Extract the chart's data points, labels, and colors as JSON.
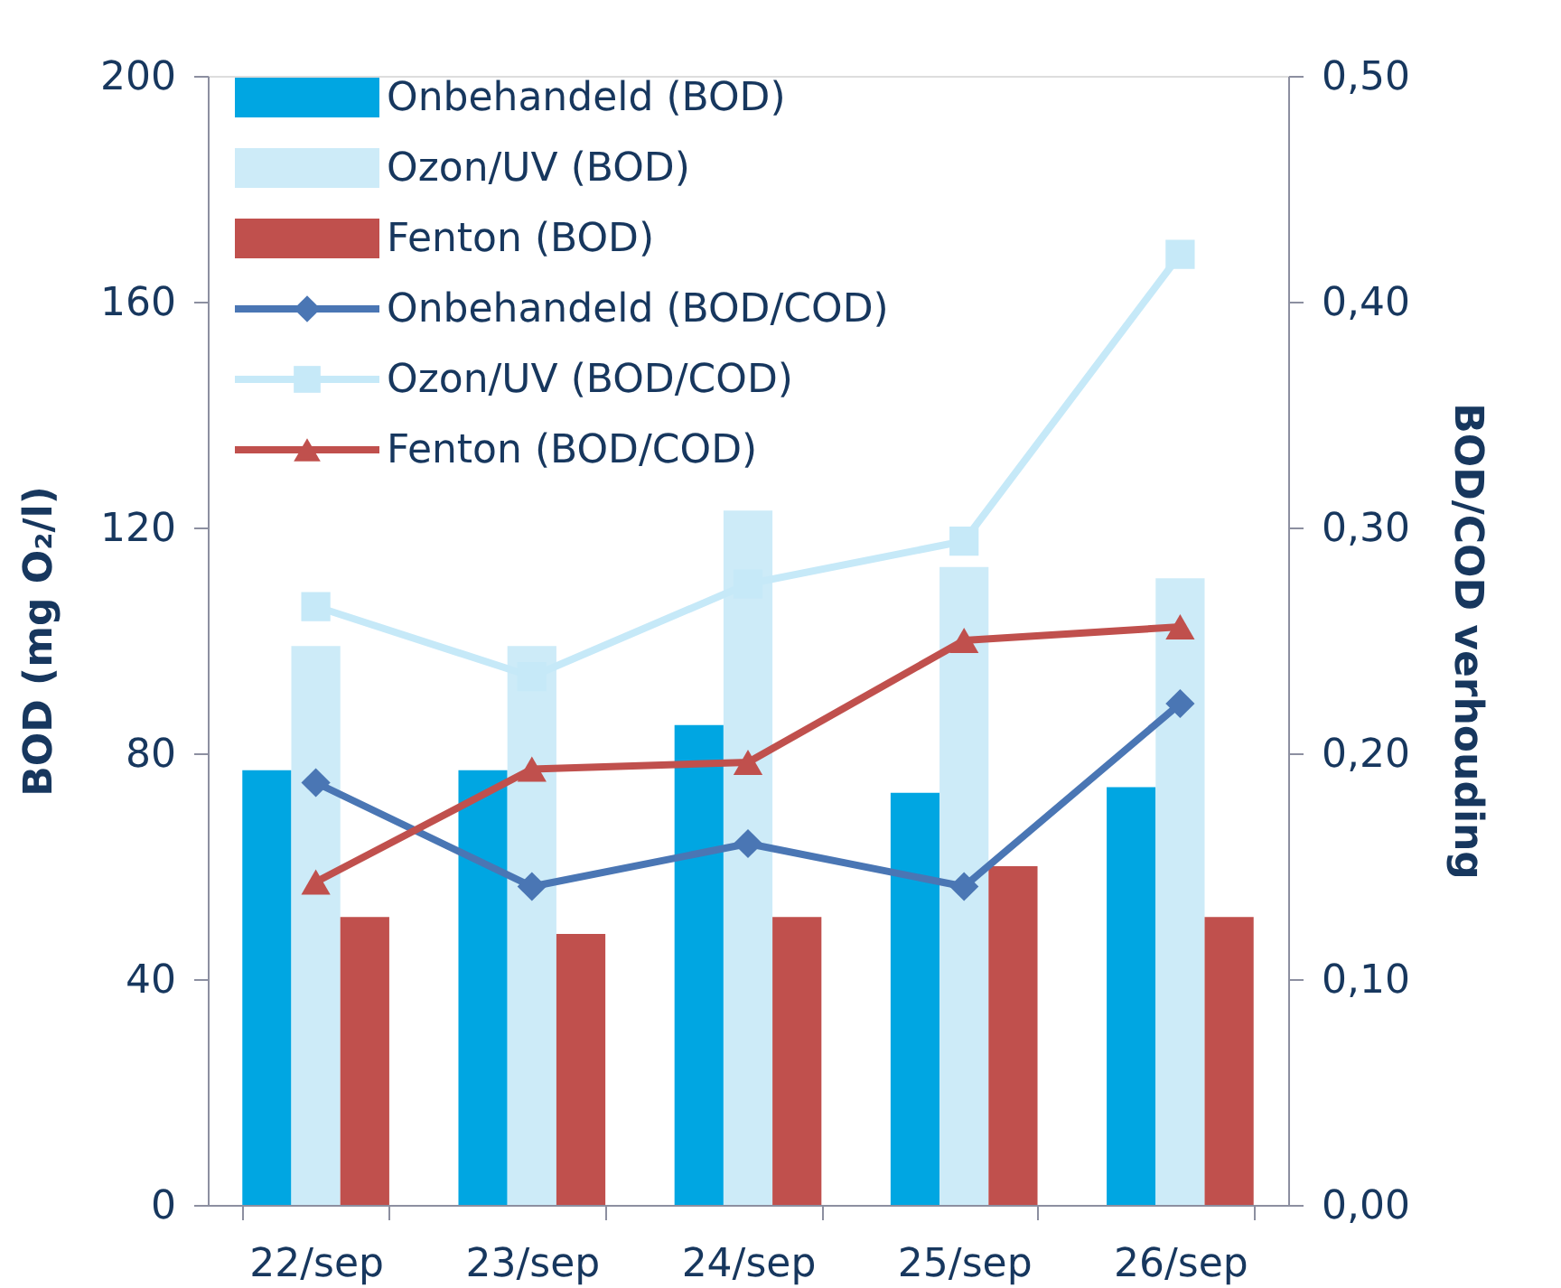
{
  "chart_data": {
    "type": "bar",
    "categories": [
      "22/sep",
      "23/sep",
      "24/sep",
      "25/sep",
      "26/sep"
    ],
    "ylabel": "BOD (mg O₂/l)",
    "y2label": "BOD/COD verhouding",
    "ylim": [
      0,
      200
    ],
    "yticks": [
      0,
      40,
      80,
      120,
      160,
      200
    ],
    "y2lim": [
      0,
      0.5
    ],
    "y2ticks": [
      {
        "value": 0,
        "label": "0,00"
      },
      {
        "value": 0.1,
        "label": "0,10"
      },
      {
        "value": 0.2,
        "label": "0,20"
      },
      {
        "value": 0.3,
        "label": "0,30"
      },
      {
        "value": 0.4,
        "label": "0,40"
      },
      {
        "value": 0.5,
        "label": "0,50"
      }
    ],
    "grid": false,
    "legend": "top left",
    "series": [
      {
        "name": "Onbehandeld (BOD)",
        "type": "bar",
        "color": "#00a6e2",
        "values": [
          77,
          77,
          85,
          73,
          74
        ]
      },
      {
        "name": "Ozon/UV (BOD)",
        "type": "bar",
        "color": "#cdebf8",
        "values": [
          99,
          99,
          123,
          113,
          111
        ]
      },
      {
        "name": "Fenton (BOD)",
        "type": "bar",
        "color": "#c0504d",
        "values": [
          51,
          48,
          51,
          60,
          51
        ]
      },
      {
        "name": "Onbehandeld (BOD/COD)",
        "type": "line",
        "axis": "y2",
        "color": "#4a76b4",
        "marker": "diamond",
        "values": [
          0.187,
          0.141,
          0.16,
          0.141,
          0.222
        ]
      },
      {
        "name": "Ozon/UV (BOD/COD)",
        "type": "line",
        "axis": "y2",
        "color": "#c6e9f8",
        "marker": "square",
        "values": [
          0.265,
          0.234,
          0.275,
          0.294,
          0.421
        ]
      },
      {
        "name": "Fenton (BOD/COD)",
        "type": "line",
        "axis": "y2",
        "color": "#c0504d",
        "marker": "triangle",
        "values": [
          0.143,
          0.193,
          0.196,
          0.25,
          0.256
        ]
      }
    ]
  }
}
